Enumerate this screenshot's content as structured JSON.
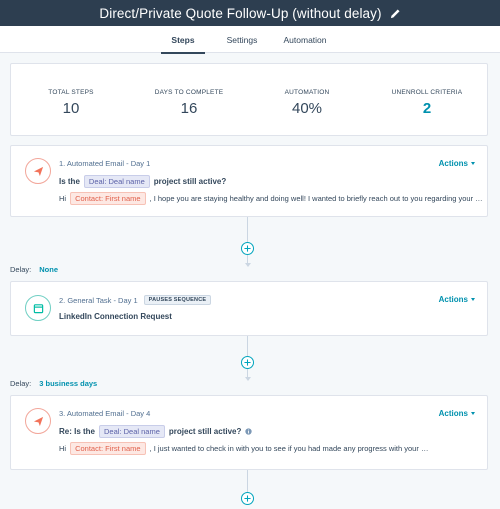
{
  "header": {
    "title": "Direct/Private Quote Follow-Up (without delay)",
    "edit_icon": "pencil-icon"
  },
  "tabs": [
    {
      "label": "Steps",
      "active": true
    },
    {
      "label": "Settings",
      "active": false
    },
    {
      "label": "Automation",
      "active": false
    }
  ],
  "stats": [
    {
      "label": "TOTAL STEPS",
      "value": "10"
    },
    {
      "label": "DAYS TO COMPLETE",
      "value": "16"
    },
    {
      "label": "AUTOMATION",
      "value": "40%"
    },
    {
      "label": "UNENROLL CRITERIA",
      "value": "2"
    }
  ],
  "steps": [
    {
      "title": "1. Automated Email - Day 1",
      "icon": "paper-plane-icon",
      "actions": "Actions",
      "subject_prefix": "Is the",
      "subject_token": "Deal: Deal name",
      "subject_suffix": "project still active?",
      "body_prefix": "Hi",
      "body_token": "Contact: First name",
      "body_suffix": ", I hope you are staying healthy and doing well! I wanted to briefly reach out to you regarding your …"
    },
    {
      "title": "2. General Task - Day 1",
      "icon": "calendar-icon",
      "badge": "PAUSES SEQUENCE",
      "actions": "Actions",
      "task_name": "LinkedIn Connection Request"
    },
    {
      "title": "3. Automated Email - Day 4",
      "icon": "paper-plane-icon",
      "actions": "Actions",
      "subject_prefix": "Re: Is the",
      "subject_token": "Deal: Deal name",
      "subject_suffix": "project still active?",
      "info_icon": "info-icon",
      "body_prefix": "Hi",
      "body_token": "Contact: First name",
      "body_suffix": ", I just wanted to check in with you to see if you had made any progress with your …"
    }
  ],
  "delays": [
    {
      "label": "Delay:",
      "value": "None"
    },
    {
      "label": "Delay:",
      "value": "3 business days"
    }
  ],
  "colors": {
    "header_bg": "#2d3e50",
    "accent": "#0091ae",
    "email_icon": "#f2735a",
    "task_icon": "#00bda5"
  }
}
